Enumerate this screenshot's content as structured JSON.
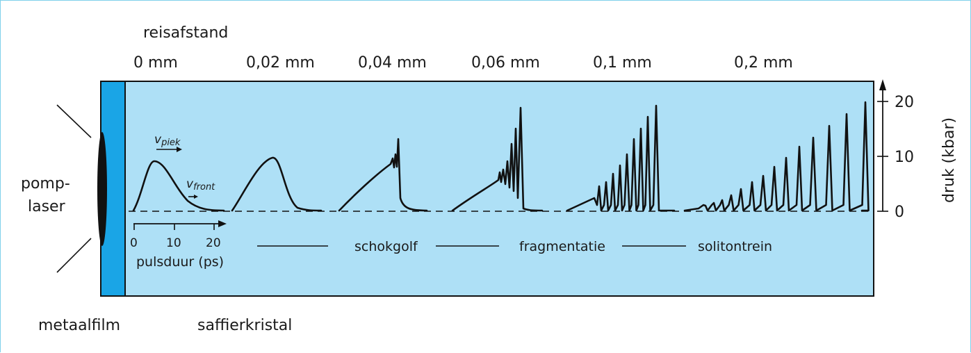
{
  "distance": {
    "title": "reisafstand",
    "labels": [
      "0 mm",
      "0,02 mm",
      "0,04 mm",
      "0,06 mm",
      "0,1 mm",
      "0,2 mm"
    ]
  },
  "pump": {
    "line1": "pomp-",
    "line2": "laser"
  },
  "velocity": {
    "peak_v": "v",
    "peak_sub": "piek",
    "front_v": "v",
    "front_sub": "front"
  },
  "time_axis": {
    "label": "pulsduur (ps)",
    "ticks": [
      "0",
      "10",
      "20"
    ]
  },
  "pressure_axis": {
    "label": "druk (kbar)",
    "ticks": [
      "0",
      "10",
      "20"
    ]
  },
  "stages": [
    "schokgolf",
    "fragmentatie",
    "solitontrein"
  ],
  "bottom_labels": {
    "metal": "metaalfilm",
    "crystal": "saffierkristal"
  },
  "colors": {
    "crystal": "#aee0f6",
    "metal_film": "#1aa5e6",
    "ink": "#111111",
    "frame": "#7fd0ea"
  }
}
